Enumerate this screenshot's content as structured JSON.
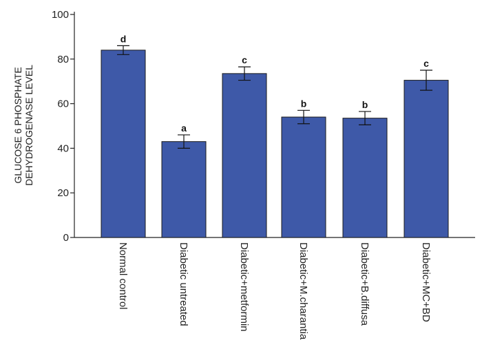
{
  "chart_data": {
    "type": "bar",
    "title": "",
    "xlabel": "",
    "ylabel_lines": [
      "GLUCOSE 6 PHOSPHATE",
      "DEHYDROGENASE LEVEL"
    ],
    "ylim": [
      0,
      100
    ],
    "yticks": [
      0,
      20,
      40,
      60,
      80,
      100
    ],
    "categories": [
      "Normal control",
      "Diabetic untreated",
      "Diabetic+metformin",
      "Diabetic+M.charantia",
      "Diabetic+B.diffusa",
      "Diabetic+MC+BD"
    ],
    "values": [
      84,
      43,
      73.5,
      54,
      53.5,
      70.5
    ],
    "error": [
      2,
      3,
      3,
      3,
      3,
      4.5
    ],
    "significance": [
      "d",
      "a",
      "c",
      "b",
      "b",
      "c"
    ],
    "bar_color": "#3E59A8",
    "grid": false,
    "legend": "none"
  }
}
